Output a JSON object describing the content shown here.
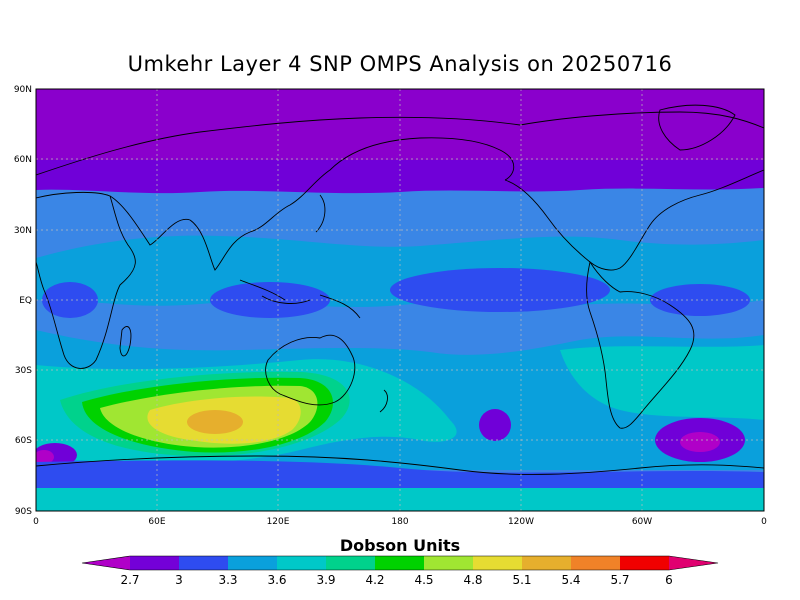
{
  "title": "Umkehr Layer 4 SNP OMPS Analysis on 20250716",
  "map": {
    "lat_labels": [
      "90N",
      "60N",
      "30N",
      "EQ",
      "30S",
      "60S",
      "90S"
    ],
    "lon_labels": [
      "0",
      "60E",
      "120E",
      "180",
      "120W",
      "60W",
      "0"
    ],
    "background": "#3a86e6"
  },
  "legend": {
    "title": "Dobson Units",
    "labels": [
      "2.7",
      "3",
      "3.3",
      "3.6",
      "3.9",
      "4.2",
      "4.5",
      "4.8",
      "5.1",
      "5.4",
      "5.7",
      "6"
    ],
    "colors": [
      "#b000c8",
      "#7400d8",
      "#2e4cf0",
      "#0aa0dc",
      "#00c8c8",
      "#00d28c",
      "#00d200",
      "#a0e632",
      "#e6dc32",
      "#e6af2d",
      "#f08228",
      "#f00000",
      "#e00070"
    ]
  }
}
